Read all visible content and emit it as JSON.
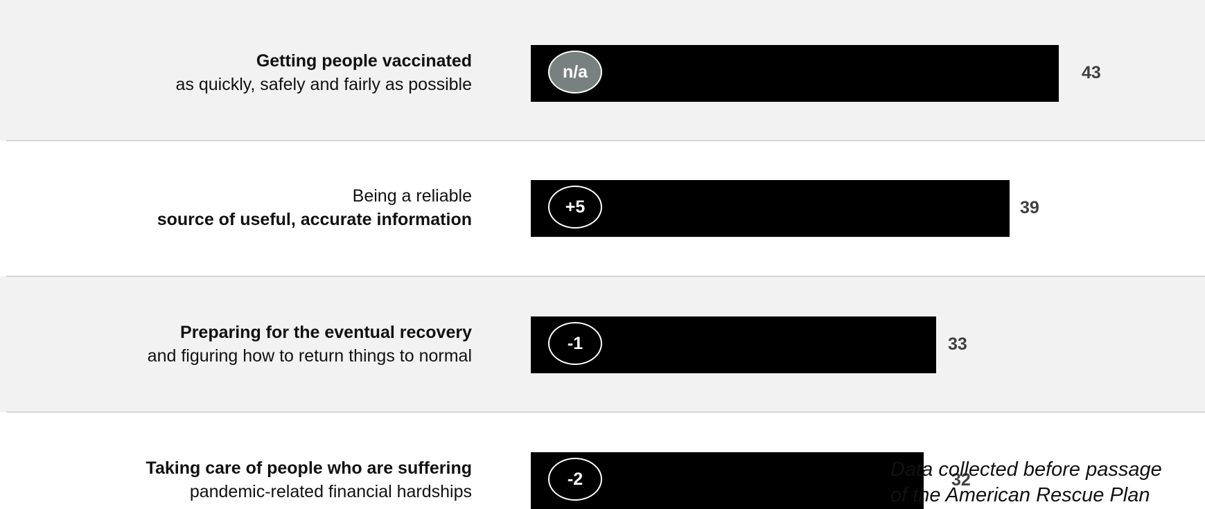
{
  "chart_data": {
    "type": "bar",
    "orientation": "horizontal",
    "xlim": [
      0,
      43
    ],
    "categories": [
      {
        "lines": [
          {
            "text": "Getting people vaccinated",
            "bold": true
          },
          {
            "text": "as quickly, safely and fairly as possible",
            "bold": false
          }
        ],
        "value": 43,
        "value_label": "43",
        "change": "n/a"
      },
      {
        "lines": [
          {
            "text": "Being a reliable",
            "bold": false
          },
          {
            "text": "source of useful, accurate information",
            "bold": true
          }
        ],
        "value": 39,
        "value_label": "39",
        "change": "+5"
      },
      {
        "lines": [
          {
            "text": "Preparing for the eventual recovery",
            "bold": true
          },
          {
            "text": "and figuring how to return things to normal",
            "bold": false
          }
        ],
        "value": 33,
        "value_label": "33",
        "change": "-1"
      },
      {
        "lines": [
          {
            "text": "Taking care of people who are suffering",
            "bold": true
          },
          {
            "text": "pandemic-related financial hardships",
            "bold": false
          }
        ],
        "value": 32,
        "value_label": "32",
        "change": "-2"
      }
    ],
    "annotation": {
      "line1": "Data collected before passage",
      "line2": "of the American Rescue Plan"
    },
    "colors": {
      "bar": "#000000",
      "badge_na": "#78817f",
      "value_text": "#404040",
      "row_shade": "#f2f2f2"
    }
  }
}
